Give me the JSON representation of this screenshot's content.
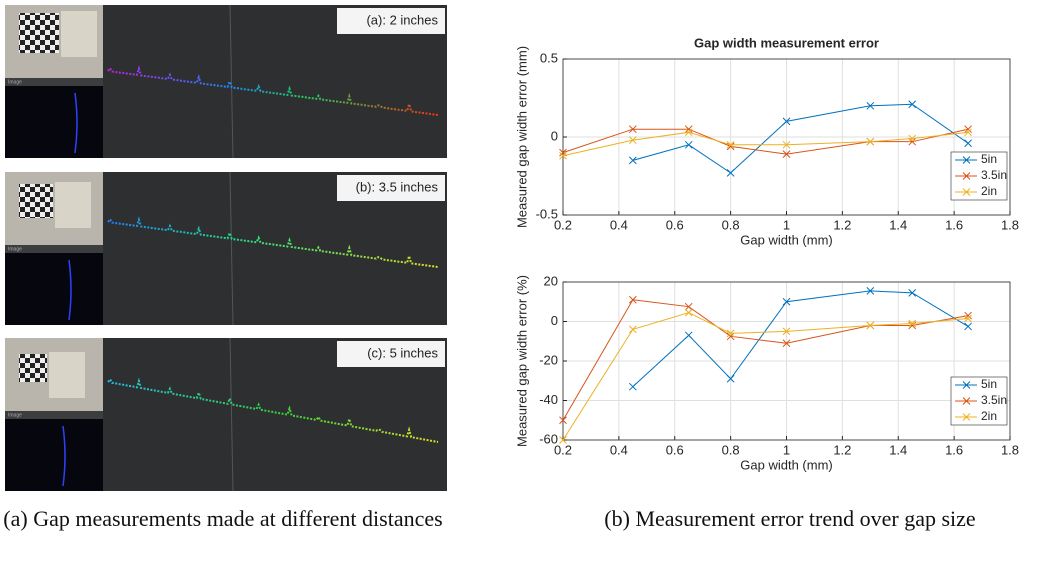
{
  "figure": {
    "panels": [
      {
        "label": "(a): 2 inches",
        "sublabel": "Image"
      },
      {
        "label": "(b): 3.5 inches",
        "sublabel": "Image"
      },
      {
        "label": "(c): 5 inches",
        "sublabel": "Image"
      }
    ],
    "captions": [
      "(a) Gap measurements made at different distances",
      "(b) Measurement error trend over gap size"
    ]
  },
  "chart_data": [
    {
      "type": "line",
      "title": "Gap width measurement error",
      "xlabel": "Gap width (mm)",
      "ylabel": "Measured gap width error (mm)",
      "x": [
        0.2,
        0.45,
        0.65,
        0.8,
        1,
        1.3,
        1.45,
        1.65
      ],
      "series": [
        {
          "name": "5in",
          "color": "#0072bd",
          "values": [
            null,
            -0.15,
            -0.05,
            -0.23,
            0.1,
            0.2,
            0.21,
            -0.04
          ]
        },
        {
          "name": "3.5in",
          "color": "#d95319",
          "values": [
            -0.1,
            0.05,
            0.05,
            -0.06,
            -0.11,
            -0.03,
            -0.03,
            0.05
          ]
        },
        {
          "name": "2in",
          "color": "#edb120",
          "values": [
            -0.12,
            -0.02,
            0.03,
            -0.05,
            -0.05,
            -0.03,
            -0.01,
            0.03
          ]
        }
      ],
      "xlim": [
        0.2,
        1.8
      ],
      "xticks": [
        0.2,
        0.4,
        0.6,
        0.8,
        1,
        1.2,
        1.4,
        1.6,
        1.8
      ],
      "ylim": [
        -0.5,
        0.5
      ],
      "yticks": [
        -0.5,
        0,
        0.5
      ],
      "grid": true,
      "marker": "x",
      "legend": "lower-right"
    },
    {
      "type": "line",
      "xlabel": "Gap width (mm)",
      "ylabel": "Measured gap width error (%)",
      "x": [
        0.2,
        0.45,
        0.65,
        0.8,
        1,
        1.3,
        1.45,
        1.65
      ],
      "series": [
        {
          "name": "5in",
          "color": "#0072bd",
          "values": [
            null,
            -33,
            -7,
            -29,
            10,
            15.5,
            14.5,
            -2.5
          ]
        },
        {
          "name": "3.5in",
          "color": "#d95319",
          "values": [
            -50,
            11,
            7.5,
            -7.5,
            -11,
            -2,
            -2,
            3
          ]
        },
        {
          "name": "2in",
          "color": "#edb120",
          "values": [
            -60,
            -4,
            4.5,
            -6,
            -5,
            -2,
            -1,
            1.5
          ]
        }
      ],
      "xlim": [
        0.2,
        1.8
      ],
      "xticks": [
        0.2,
        0.4,
        0.6,
        0.8,
        1,
        1.2,
        1.4,
        1.6,
        1.8
      ],
      "ylim": [
        -60,
        20
      ],
      "yticks": [
        -60,
        -40,
        -20,
        0,
        20
      ],
      "grid": true,
      "marker": "x",
      "legend": "lower-right"
    }
  ]
}
